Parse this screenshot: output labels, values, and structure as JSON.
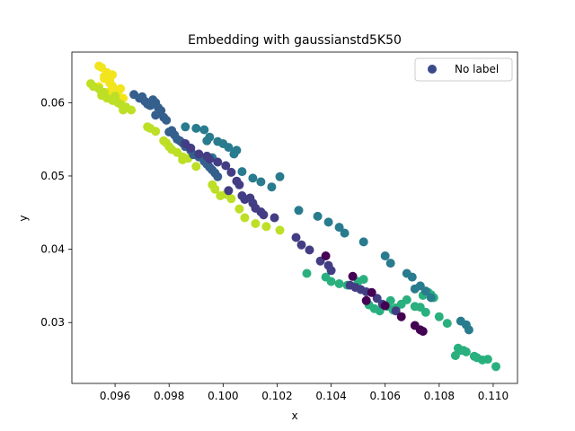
{
  "chart_data": {
    "type": "scatter",
    "title": "Embedding with gaussianstd5K50",
    "xlabel": "x",
    "ylabel": "y",
    "xlim": [
      0.0944,
      0.1109
    ],
    "ylim": [
      0.0217,
      0.0669
    ],
    "xticks": [
      0.096,
      0.098,
      0.1,
      0.102,
      0.104,
      0.106,
      0.108,
      0.11
    ],
    "xtick_labels": [
      "0.096",
      "0.098",
      "0.100",
      "0.102",
      "0.104",
      "0.106",
      "0.108",
      "0.110"
    ],
    "yticks": [
      0.03,
      0.04,
      0.05,
      0.06
    ],
    "ytick_labels": [
      "0.03",
      "0.04",
      "0.05",
      "0.06"
    ],
    "grid": false,
    "legend": {
      "position": "top-right",
      "entries": [
        {
          "label": "No label",
          "color": "#3b4a8c"
        }
      ]
    },
    "colormap": "viridis",
    "palette": {
      "yellow": "#f2e51d",
      "yellowgreen": "#bddf26",
      "green": "#2ab07f",
      "teal": "#297b8e",
      "blue": "#355f8d",
      "indigo": "#433d84",
      "purple": "#440154"
    },
    "points": [
      {
        "color": "#f2e51d",
        "x": [
          0.0954,
          0.0955,
          0.0957,
          0.0956,
          0.0958,
          0.0959,
          0.0962,
          0.0958,
          0.0961,
          0.096,
          0.0963,
          0.0954,
          0.0956,
          0.0959,
          0.0958
        ],
        "y": [
          0.065,
          0.0648,
          0.0641,
          0.0636,
          0.0627,
          0.0623,
          0.0619,
          0.0615,
          0.0614,
          0.0609,
          0.0606,
          0.0622,
          0.0633,
          0.0638,
          0.063
        ]
      },
      {
        "color": "#bddf26",
        "x": [
          0.0951,
          0.0952,
          0.0954,
          0.0956,
          0.0955,
          0.0957,
          0.0959,
          0.096,
          0.0962,
          0.0964,
          0.0966,
          0.0963,
          0.0972,
          0.0973,
          0.0975,
          0.0978,
          0.0979,
          0.0981,
          0.0983,
          0.0985,
          0.0987,
          0.099,
          0.0996,
          0.0997,
          0.0999,
          0.1001,
          0.1003,
          0.1006,
          0.1008,
          0.1012,
          0.1016,
          0.1021,
          0.0961,
          0.098,
          0.0985
        ],
        "y": [
          0.0626,
          0.0622,
          0.0619,
          0.0614,
          0.061,
          0.0606,
          0.0603,
          0.0609,
          0.0598,
          0.0594,
          0.059,
          0.059,
          0.0567,
          0.0565,
          0.0561,
          0.0548,
          0.0545,
          0.0536,
          0.0532,
          0.0526,
          0.0524,
          0.0513,
          0.0488,
          0.0482,
          0.0473,
          0.0475,
          0.0469,
          0.0455,
          0.0443,
          0.0435,
          0.0431,
          0.0426,
          0.06,
          0.054,
          0.0522
        ]
      },
      {
        "color": "#2ab07f",
        "x": [
          0.1031,
          0.1038,
          0.104,
          0.1043,
          0.1046,
          0.1049,
          0.105,
          0.1052,
          0.1054,
          0.1056,
          0.1058,
          0.1061,
          0.1062,
          0.1064,
          0.1066,
          0.1068,
          0.1071,
          0.1073,
          0.1074,
          0.1076,
          0.1077,
          0.1078,
          0.108,
          0.1083,
          0.1087,
          0.1088,
          0.109,
          0.1093,
          0.1096,
          0.1098,
          0.1101,
          0.1094,
          0.1089,
          0.1086,
          0.1075,
          0.1063
        ],
        "y": [
          0.0367,
          0.0362,
          0.0356,
          0.0353,
          0.0351,
          0.0349,
          0.0356,
          0.0359,
          0.0324,
          0.0319,
          0.0316,
          0.0322,
          0.033,
          0.032,
          0.0325,
          0.0331,
          0.0322,
          0.0321,
          0.0337,
          0.0341,
          0.0338,
          0.0334,
          0.0308,
          0.0299,
          0.0265,
          0.0262,
          0.026,
          0.0254,
          0.0249,
          0.025,
          0.024,
          0.0252,
          0.0262,
          0.0255,
          0.0314,
          0.0317
        ]
      },
      {
        "color": "#297b8e",
        "x": [
          0.0986,
          0.099,
          0.0993,
          0.0995,
          0.0998,
          0.1,
          0.1002,
          0.1005,
          0.1007,
          0.1011,
          0.1014,
          0.1018,
          0.1021,
          0.1028,
          0.1035,
          0.1039,
          0.1043,
          0.1045,
          0.1052,
          0.106,
          0.1062,
          0.1068,
          0.107,
          0.1071,
          0.1073,
          0.1075,
          0.1077,
          0.1088,
          0.109,
          0.1091,
          0.0996,
          0.0994,
          0.1004
        ],
        "y": [
          0.0567,
          0.0565,
          0.0563,
          0.0553,
          0.0547,
          0.0544,
          0.0539,
          0.0535,
          0.0506,
          0.0497,
          0.0492,
          0.0485,
          0.0499,
          0.0453,
          0.0445,
          0.0437,
          0.043,
          0.0422,
          0.041,
          0.0391,
          0.0381,
          0.0367,
          0.0362,
          0.0346,
          0.035,
          0.0343,
          0.0334,
          0.0302,
          0.0297,
          0.029,
          0.0525,
          0.0548,
          0.053
        ]
      },
      {
        "color": "#355f8d",
        "x": [
          0.0967,
          0.0969,
          0.0971,
          0.0972,
          0.0974,
          0.0975,
          0.0976,
          0.0977,
          0.0978,
          0.0979,
          0.098,
          0.0982,
          0.0983,
          0.0985,
          0.0986,
          0.0988,
          0.0989,
          0.0991,
          0.0993,
          0.0995,
          0.0997,
          0.0998,
          0.097,
          0.0973,
          0.0975,
          0.0981,
          0.0984,
          0.0996,
          0.0994
        ],
        "y": [
          0.0611,
          0.0606,
          0.0602,
          0.0598,
          0.0604,
          0.06,
          0.0593,
          0.0589,
          0.058,
          0.0576,
          0.056,
          0.0556,
          0.055,
          0.0545,
          0.054,
          0.0535,
          0.0529,
          0.0526,
          0.052,
          0.0512,
          0.0504,
          0.0499,
          0.0608,
          0.0596,
          0.0583,
          0.0562,
          0.0548,
          0.0508,
          0.0516
        ]
      },
      {
        "color": "#433d84",
        "x": [
          0.0986,
          0.0988,
          0.0991,
          0.0995,
          0.0998,
          0.1001,
          0.1003,
          0.1005,
          0.1006,
          0.1007,
          0.1008,
          0.1011,
          0.1012,
          0.1014,
          0.1015,
          0.1019,
          0.1027,
          0.1029,
          0.1032,
          0.1036,
          0.1039,
          0.104,
          0.1047,
          0.1049,
          0.1051,
          0.1053,
          0.1057,
          0.1059,
          0.1064,
          0.0994,
          0.101,
          0.1002
        ],
        "y": [
          0.0544,
          0.0538,
          0.053,
          0.0523,
          0.0519,
          0.0514,
          0.0505,
          0.0493,
          0.0488,
          0.0473,
          0.0468,
          0.0463,
          0.0456,
          0.0451,
          0.0447,
          0.0443,
          0.0416,
          0.0406,
          0.0399,
          0.0384,
          0.0378,
          0.0371,
          0.0351,
          0.0348,
          0.0345,
          0.0342,
          0.0333,
          0.0325,
          0.0316,
          0.0527,
          0.047,
          0.048
        ]
      },
      {
        "color": "#440154",
        "x": [
          0.1038,
          0.1048,
          0.1055,
          0.1066,
          0.1071,
          0.1073,
          0.1074,
          0.1053,
          0.106
        ],
        "y": [
          0.0391,
          0.0363,
          0.0341,
          0.0308,
          0.0296,
          0.029,
          0.0288,
          0.033,
          0.0323
        ]
      }
    ]
  }
}
